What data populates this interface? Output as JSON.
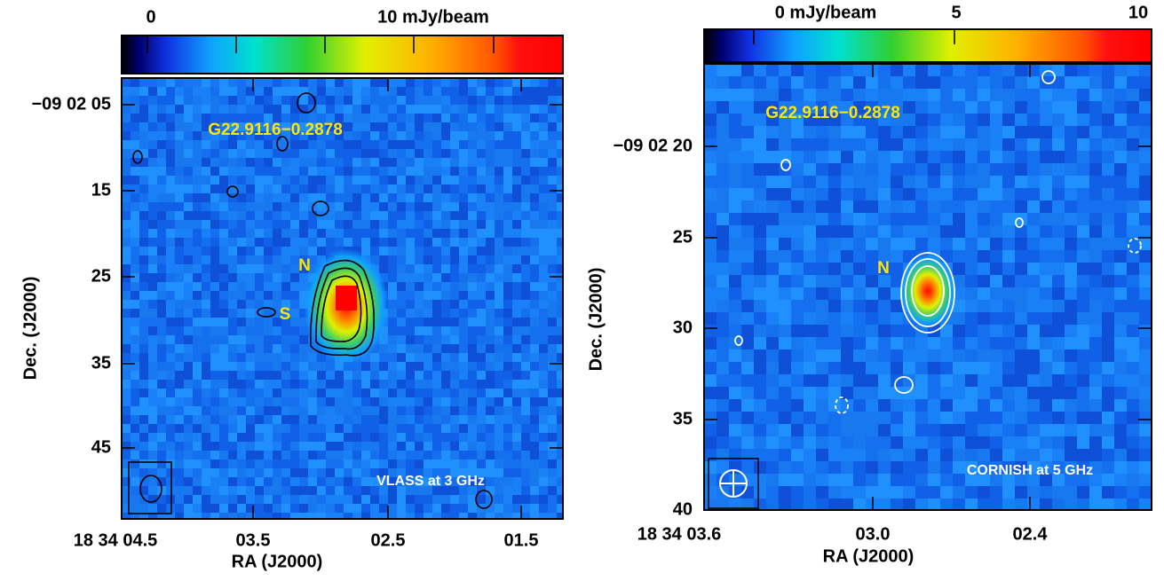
{
  "panels": [
    {
      "colorbar_labels": [
        "0",
        "10 mJy/beam"
      ],
      "y_ticks": [
        "−09 02 05",
        "15",
        "25",
        "35",
        "45"
      ],
      "x_ticks": [
        "18 34 04.5",
        "03.5",
        "02.5",
        "01.5"
      ],
      "x_label": "RA (J2000)",
      "y_label": "Dec. (J2000)",
      "source_name": "G22.9116−0.2878",
      "components": [
        "N",
        "S"
      ],
      "annotation": "VLASS at 3 GHz"
    },
    {
      "colorbar_labels": [
        "0 mJy/beam",
        "5",
        "10"
      ],
      "y_ticks": [
        "−09 02 20",
        "25",
        "30",
        "35",
        "40"
      ],
      "x_ticks": [
        "18 34 03.6",
        "03.0",
        "02.4"
      ],
      "x_label": "RA (J2000)",
      "y_label": "Dec. (J2000)",
      "source_name": "G22.9116−0.2878",
      "components": [
        "N"
      ],
      "annotation": "CORNISH at 5 GHz"
    }
  ]
}
